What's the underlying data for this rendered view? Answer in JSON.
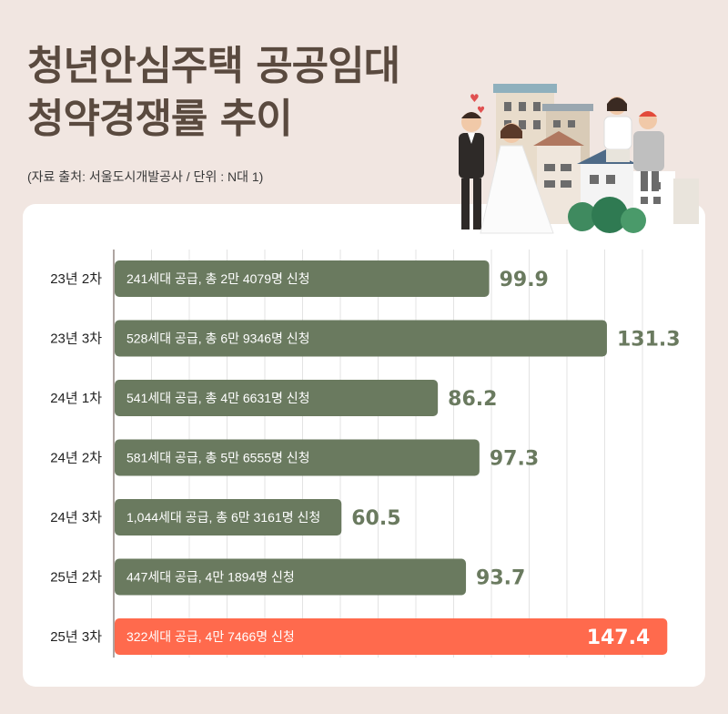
{
  "title_lines": [
    "청년안심주택 공공임대",
    "청약경쟁률 추이"
  ],
  "source_note": "(자료 출처: 서울도시개발공사 / 단위 : N대 1)",
  "colors": {
    "background": "#f1e6e1",
    "title": "#5a4a3f",
    "bar_default": "#6a7a5f",
    "bar_highlight": "#ff6a4d",
    "value_default": "#6a7a5f",
    "value_highlight": "#ffffff",
    "grid": "#e3e3e3"
  },
  "chart_data": {
    "type": "bar",
    "orientation": "horizontal",
    "categories": [
      "23년 2차",
      "23년 3차",
      "24년 1차",
      "24년 2차",
      "24년 3차",
      "25년 2차",
      "25년 3차"
    ],
    "values": [
      99.9,
      131.3,
      86.2,
      97.3,
      60.5,
      93.7,
      147.4
    ],
    "bar_labels": [
      "241세대 공급, 총 2만 4079명 신청",
      "528세대 공급, 총 6만 9346명 신청",
      "541세대 공급, 총 4만 6631명 신청",
      "581세대 공급, 총 5만 6555명 신청",
      "1,044세대 공급, 총 6만 3161명 신청",
      "447세대 공급, 4만 1894명 신청",
      "322세대 공급, 4만 7466명 신청"
    ],
    "value_labels": [
      "99.9",
      "131.3",
      "86.2",
      "97.3",
      "60.5",
      "93.7",
      "147.4"
    ],
    "highlight_index": 6,
    "xlim": [
      0,
      150
    ],
    "grid": true,
    "legend": "none"
  }
}
